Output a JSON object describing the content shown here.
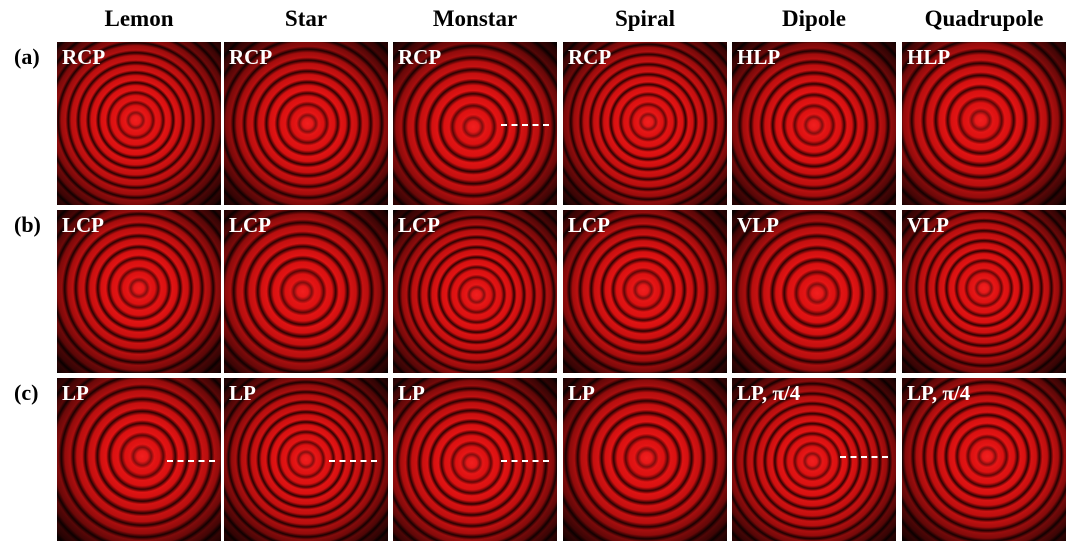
{
  "columns": [
    "Lemon",
    "Star",
    "Monstar",
    "Spiral",
    "Dipole",
    "Quadrupole"
  ],
  "rows": [
    {
      "label": "(a)",
      "cells": [
        "RCP",
        "RCP",
        "RCP",
        "RCP",
        "HLP",
        "HLP"
      ]
    },
    {
      "label": "(b)",
      "cells": [
        "LCP",
        "LCP",
        "LCP",
        "LCP",
        "VLP",
        "VLP"
      ]
    },
    {
      "label": "(c)",
      "cells": [
        "LP",
        "LP",
        "LP",
        "LP",
        "LP, π/4",
        "LP, π/4"
      ]
    }
  ]
}
